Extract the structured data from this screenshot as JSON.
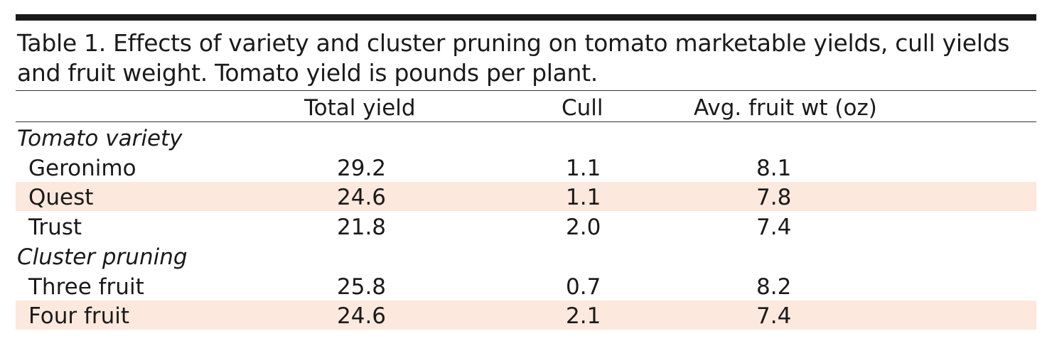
{
  "table": {
    "caption": "Table 1. Effects of variety and cluster pruning on tomato marketable yields, cull yields and fruit weight. Tomato yield is pounds per plant.",
    "columns": [
      "",
      "Total yield",
      "Cull",
      "Avg. fruit wt (oz)"
    ],
    "groups": [
      {
        "label": "Tomato variety",
        "rows": [
          {
            "label": "Geronimo",
            "total_yield": "29.2",
            "cull": "1.1",
            "avg_fruit_wt": "8.1"
          },
          {
            "label": "Quest",
            "total_yield": "24.6",
            "cull": "1.1",
            "avg_fruit_wt": "7.8"
          },
          {
            "label": "Trust",
            "total_yield": "21.8",
            "cull": "2.0",
            "avg_fruit_wt": "7.4"
          }
        ]
      },
      {
        "label": "Cluster pruning",
        "rows": [
          {
            "label": "Three fruit",
            "total_yield": "25.8",
            "cull": "0.7",
            "avg_fruit_wt": "8.2"
          },
          {
            "label": "Four fruit",
            "total_yield": "24.6",
            "cull": "2.1",
            "avg_fruit_wt": "7.4"
          }
        ]
      }
    ],
    "colors": {
      "shaded_row": "#fce8dd",
      "rule": "#1a1a1a"
    }
  }
}
